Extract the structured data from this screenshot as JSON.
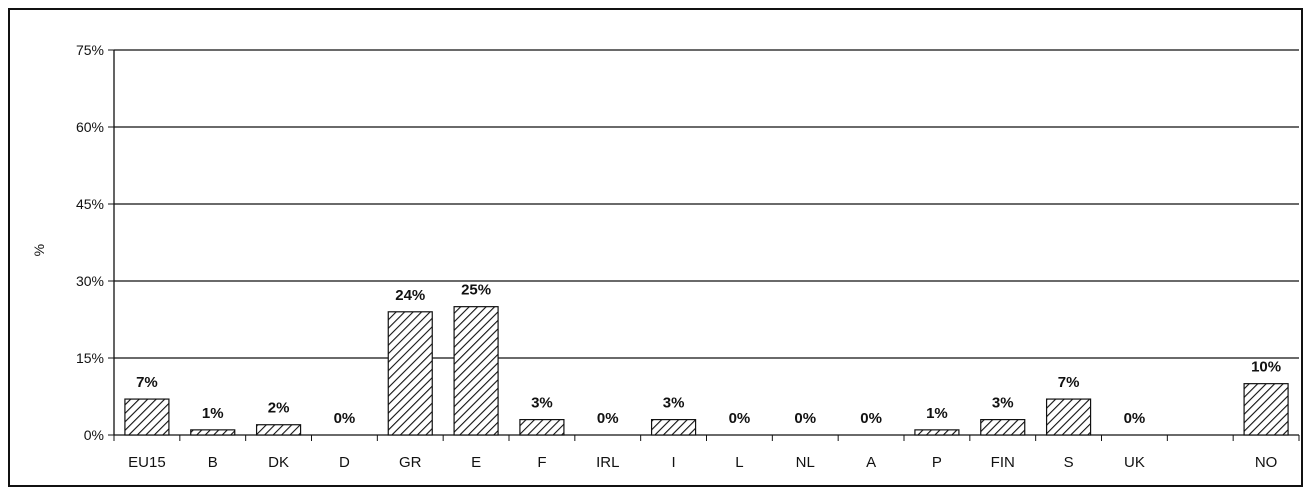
{
  "chart_data": {
    "type": "bar",
    "ylabel": "%",
    "ylim": [
      0,
      75
    ],
    "yticks": [
      "0%",
      "15%",
      "30%",
      "45%",
      "60%",
      "75%"
    ],
    "ytick_values": [
      0,
      15,
      30,
      45,
      60,
      75
    ],
    "grid": true,
    "categories": [
      "EU15",
      "B",
      "DK",
      "D",
      "GR",
      "E",
      "F",
      "IRL",
      "I",
      "L",
      "NL",
      "A",
      "P",
      "FIN",
      "S",
      "UK",
      "",
      "NO"
    ],
    "values": [
      7,
      1,
      2,
      0,
      24,
      25,
      3,
      0,
      3,
      0,
      0,
      0,
      1,
      3,
      7,
      0,
      null,
      10
    ],
    "data_labels": [
      "7%",
      "1%",
      "2%",
      "0%",
      "24%",
      "25%",
      "3%",
      "0%",
      "3%",
      "0%",
      "0%",
      "0%",
      "1%",
      "3%",
      "7%",
      "0%",
      "",
      "10%"
    ],
    "bar_pattern": "diagonal-hatch"
  }
}
